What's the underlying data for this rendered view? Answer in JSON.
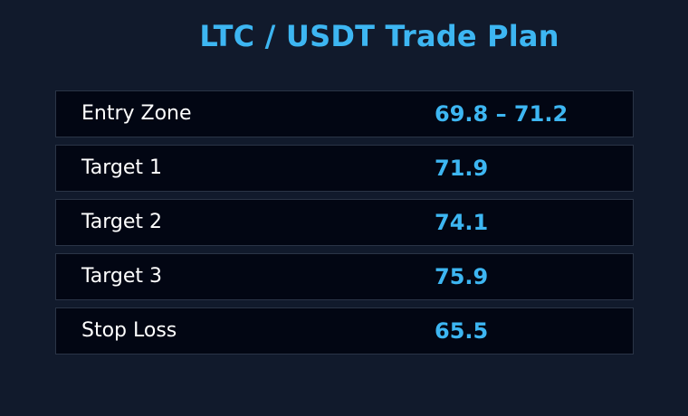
{
  "title": "LTC / USDT Trade Plan",
  "colors": {
    "accent": "#3db6f2",
    "background": "#111a2c",
    "row_background": "#020613",
    "row_border": "#2a3446",
    "label": "#ffffff"
  },
  "rows": [
    {
      "label": "Entry Zone",
      "value": "69.8 – 71.2"
    },
    {
      "label": "Target 1",
      "value": "71.9"
    },
    {
      "label": "Target 2",
      "value": "74.1"
    },
    {
      "label": "Target 3",
      "value": "75.9"
    },
    {
      "label": "Stop Loss",
      "value": "65.5"
    }
  ]
}
